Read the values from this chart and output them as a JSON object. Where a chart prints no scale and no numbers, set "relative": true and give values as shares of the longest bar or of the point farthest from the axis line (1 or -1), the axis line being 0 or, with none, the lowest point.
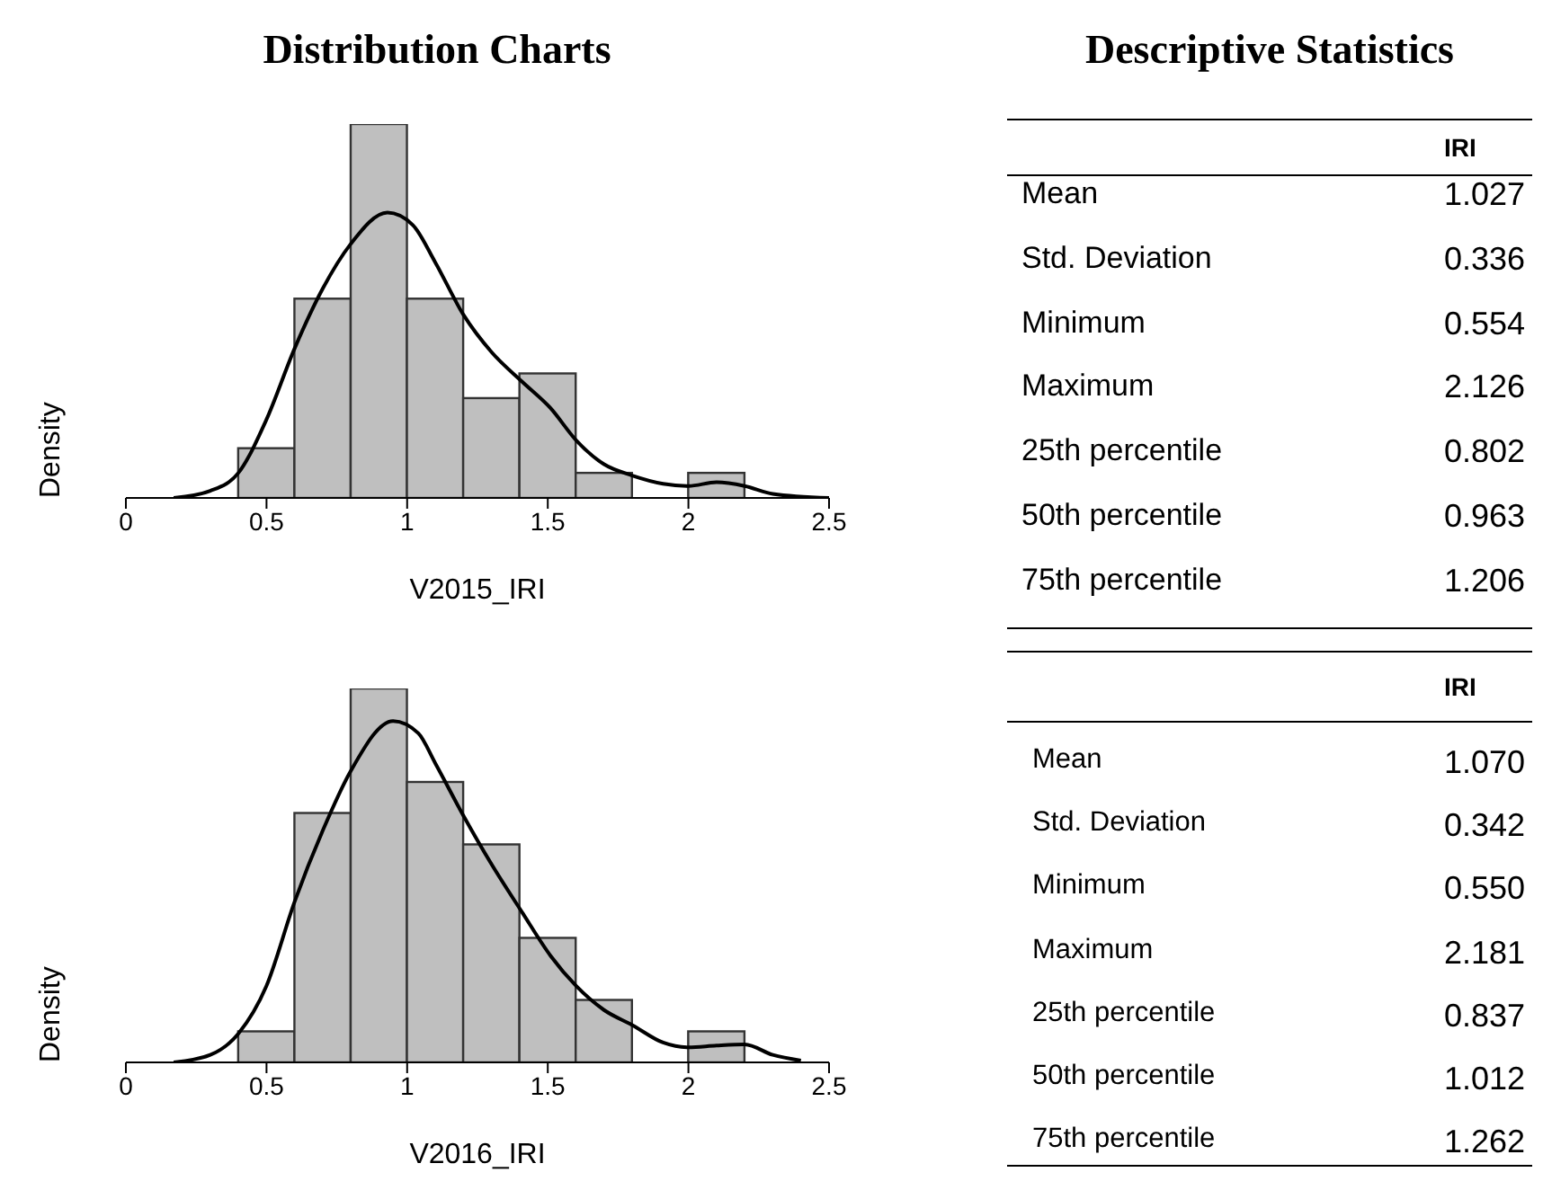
{
  "chart_data": [
    {
      "type": "histogram",
      "title": "Distribution Charts",
      "xlabel": "V2015_IRI",
      "ylabel": "Density",
      "relative": true,
      "color": "#bfbfbf",
      "bins": [
        0.4,
        0.6,
        0.8,
        1.0,
        1.2,
        1.4,
        1.6,
        1.8,
        2.0,
        2.2
      ],
      "values": [
        0.133,
        0.533,
        1,
        0.533,
        0.267,
        0.333,
        0.067,
        0,
        0.067
      ],
      "xlim": [
        0,
        2.5
      ],
      "xticks": [
        0,
        0.5,
        1,
        1.5,
        2,
        2.5
      ],
      "series": [
        {
          "type": "line",
          "color": "#000000",
          "x": [
            0.17,
            0.3,
            0.4,
            0.5,
            0.6,
            0.7,
            0.8,
            0.93,
            1.02,
            1.1,
            1.2,
            1.3,
            1.41,
            1.51,
            1.6,
            1.7,
            1.8,
            1.91,
            2.0,
            2.1,
            2.2,
            2.3,
            2.5
          ],
          "values": [
            0,
            0.019,
            0.067,
            0.21,
            0.4,
            0.56,
            0.68,
            0.763,
            0.73,
            0.63,
            0.49,
            0.39,
            0.31,
            0.24,
            0.155,
            0.09,
            0.06,
            0.038,
            0.032,
            0.042,
            0.032,
            0.011,
            0
          ]
        }
      ]
    },
    {
      "type": "other",
      "title": "Descriptive Statistics",
      "categories": [
        "Mean",
        "Std. Deviation",
        "Minimum",
        "Maximum",
        "25th percentile",
        "50th percentile",
        "75th percentile"
      ],
      "series": [
        {
          "name": "IRI",
          "values": [
            1.027,
            0.336,
            0.554,
            2.126,
            0.802,
            0.963,
            1.206
          ],
          "value_labels": [
            "1.027",
            "0.336",
            "0.554",
            "2.126",
            "0.802",
            "0.963",
            "1.206"
          ]
        }
      ]
    },
    {
      "type": "histogram",
      "xlabel": "V2016_IRI",
      "ylabel": "Density",
      "relative": true,
      "color": "#bfbfbf",
      "bins": [
        0.4,
        0.6,
        0.8,
        1.0,
        1.2,
        1.4,
        1.6,
        1.8,
        2.0,
        2.2
      ],
      "values": [
        0.083,
        0.667,
        1,
        0.75,
        0.583,
        0.333,
        0.167,
        0,
        0.083
      ],
      "xlim": [
        0,
        2.5
      ],
      "xticks": [
        0,
        0.5,
        1,
        1.5,
        2,
        2.5
      ],
      "series": [
        {
          "type": "line",
          "color": "#000000",
          "x": [
            0.17,
            0.3,
            0.4,
            0.5,
            0.6,
            0.7,
            0.8,
            0.95,
            1.04,
            1.1,
            1.2,
            1.3,
            1.41,
            1.51,
            1.6,
            1.7,
            1.8,
            1.91,
            2.0,
            2.1,
            2.2,
            2.3,
            2.4
          ],
          "values": [
            0,
            0.02,
            0.077,
            0.205,
            0.43,
            0.62,
            0.78,
            0.913,
            0.88,
            0.8,
            0.66,
            0.53,
            0.4,
            0.285,
            0.205,
            0.14,
            0.1,
            0.053,
            0.04,
            0.045,
            0.048,
            0.02,
            0.005
          ]
        }
      ]
    },
    {
      "type": "other",
      "categories": [
        "Mean",
        "Std. Deviation",
        "Minimum",
        "Maximum",
        "25th percentile",
        "50th percentile",
        "75th percentile"
      ],
      "series": [
        {
          "name": "IRI",
          "values": [
            1.07,
            0.342,
            0.55,
            2.181,
            0.837,
            1.012,
            1.262
          ],
          "value_labels": [
            "1.070",
            "0.342",
            "0.550",
            "2.181",
            "0.837",
            "1.012",
            "1.262"
          ]
        }
      ]
    }
  ]
}
